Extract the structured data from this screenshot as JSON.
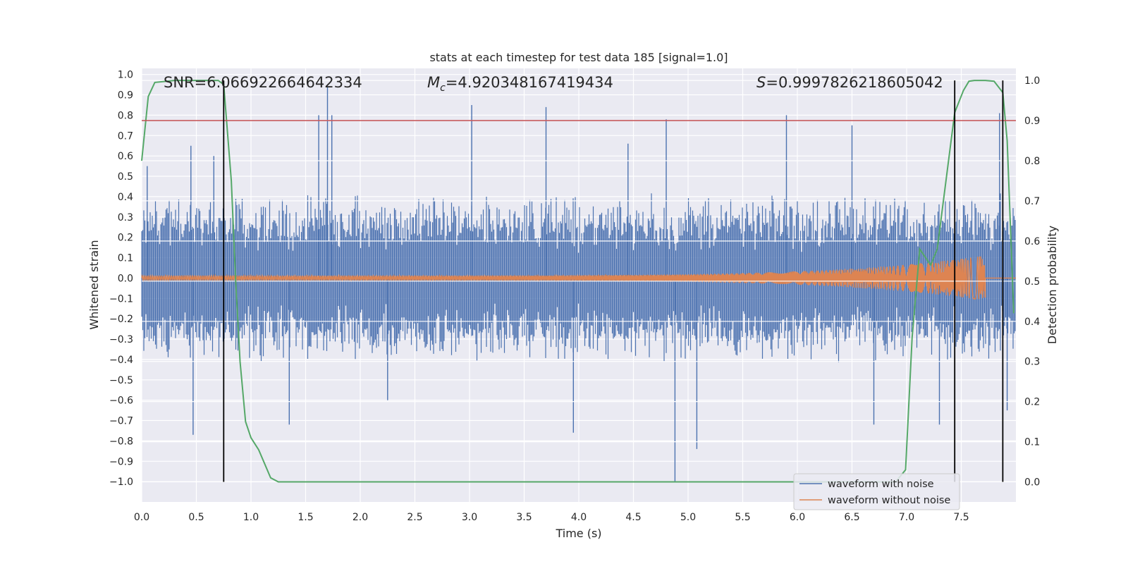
{
  "chart_data": {
    "type": "line",
    "title": "stats at each timestep for test data 185 [signal=1.0]",
    "xlabel": "Time (s)",
    "ylabel": "Whitened strain",
    "y2label": "Detection probability",
    "xlim": [
      0,
      8.0
    ],
    "ylim": [
      -1.1,
      1.03
    ],
    "y2lim": [
      -0.05,
      1.03
    ],
    "xticks": [
      0.0,
      0.5,
      1.0,
      1.5,
      2.0,
      2.5,
      3.0,
      3.5,
      4.0,
      4.5,
      5.0,
      5.5,
      6.0,
      6.5,
      7.0,
      7.5
    ],
    "xtick_labels": [
      "0.0",
      "0.5",
      "1.0",
      "1.5",
      "2.0",
      "2.5",
      "3.0",
      "3.5",
      "4.0",
      "4.5",
      "5.0",
      "5.5",
      "6.0",
      "6.5",
      "7.0",
      "7.5"
    ],
    "yticks": [
      -1.0,
      -0.9,
      -0.8,
      -0.7,
      -0.6,
      -0.5,
      -0.4,
      -0.3,
      -0.2,
      -0.1,
      0.0,
      0.1,
      0.2,
      0.3,
      0.4,
      0.5,
      0.6,
      0.7,
      0.8,
      0.9,
      1.0
    ],
    "ytick_labels": [
      "−1.0",
      "−0.9",
      "−0.8",
      "−0.7",
      "−0.6",
      "−0.5",
      "−0.4",
      "−0.3",
      "−0.2",
      "−0.1",
      "0.0",
      "0.1",
      "0.2",
      "0.3",
      "0.4",
      "0.5",
      "0.6",
      "0.7",
      "0.8",
      "0.9",
      "1.0"
    ],
    "y2ticks": [
      0.0,
      0.1,
      0.2,
      0.3,
      0.4,
      0.5,
      0.6,
      0.7,
      0.8,
      0.9,
      1.0
    ],
    "y2tick_labels": [
      "0.0",
      "0.1",
      "0.2",
      "0.3",
      "0.4",
      "0.5",
      "0.6",
      "0.7",
      "0.8",
      "0.9",
      "1.0"
    ],
    "grid": true,
    "legend_position": "bottom-right",
    "annotations": {
      "snr": "SNR=6.066922664642334",
      "mc_symbol": "M",
      "mc_sub": "c",
      "mc_value": "=4.920348167419434",
      "s_symbol": "S",
      "s_value": "=0.9997826218605042"
    },
    "series": [
      {
        "name": "waveform with noise",
        "color": "#4c72b0",
        "envelope_abs": 0.42,
        "spikes": [
          {
            "x": 0.05,
            "y": 0.55
          },
          {
            "x": 0.45,
            "y": 0.65
          },
          {
            "x": 0.66,
            "y": 0.6
          },
          {
            "x": 1.62,
            "y": 0.8
          },
          {
            "x": 1.7,
            "y": 0.94
          },
          {
            "x": 1.74,
            "y": 0.8
          },
          {
            "x": 3.02,
            "y": 0.85
          },
          {
            "x": 3.7,
            "y": 0.84
          },
          {
            "x": 4.45,
            "y": 0.66
          },
          {
            "x": 4.8,
            "y": 0.78
          },
          {
            "x": 5.9,
            "y": 0.8
          },
          {
            "x": 6.5,
            "y": 0.75
          },
          {
            "x": 7.85,
            "y": 0.81
          },
          {
            "x": 0.47,
            "y": -0.77
          },
          {
            "x": 1.35,
            "y": -0.72
          },
          {
            "x": 2.25,
            "y": -0.6
          },
          {
            "x": 3.95,
            "y": -0.76
          },
          {
            "x": 4.88,
            "y": -1.0
          },
          {
            "x": 5.08,
            "y": -0.84
          },
          {
            "x": 6.7,
            "y": -0.72
          },
          {
            "x": 7.3,
            "y": -0.72
          },
          {
            "x": 7.92,
            "y": -0.65
          }
        ]
      },
      {
        "name": "waveform without noise",
        "color": "#dd8452",
        "t_end": 7.72,
        "start_amplitude": 0.012,
        "end_amplitude": 0.11
      },
      {
        "name": "detection probability",
        "axis": "y2",
        "color": "#55a868",
        "x": [
          0.0,
          0.06,
          0.12,
          0.3,
          0.5,
          0.7,
          0.75,
          0.82,
          0.86,
          0.9,
          0.95,
          1.0,
          1.07,
          1.18,
          1.25,
          2.0,
          4.0,
          6.0,
          6.9,
          6.99,
          7.05,
          7.12,
          7.22,
          7.28,
          7.36,
          7.44,
          7.52,
          7.57,
          7.62,
          7.72,
          7.8,
          7.88,
          7.92,
          7.98
        ],
        "y": [
          0.8,
          0.96,
          0.995,
          1.0,
          1.0,
          1.0,
          0.99,
          0.75,
          0.5,
          0.3,
          0.15,
          0.11,
          0.08,
          0.01,
          0.0,
          0.0,
          0.0,
          0.0,
          0.0,
          0.03,
          0.36,
          0.58,
          0.54,
          0.58,
          0.75,
          0.92,
          0.975,
          0.998,
          1.0,
          1.0,
          0.998,
          0.97,
          0.85,
          0.42
        ]
      }
    ],
    "threshold": {
      "axis": "y2",
      "value": 0.9,
      "color": "#c44e52"
    },
    "vlines": [
      {
        "x": 0.75,
        "y2_from": 0.0,
        "y2_to": 1.0
      },
      {
        "x": 7.44,
        "y2_from": 0.0,
        "y2_to": 1.0
      },
      {
        "x": 7.88,
        "y2_from": 0.0,
        "y2_to": 1.0
      }
    ],
    "legend": [
      {
        "label": "waveform with noise",
        "color": "#4c72b0"
      },
      {
        "label": "waveform without noise",
        "color": "#dd8452"
      }
    ]
  }
}
